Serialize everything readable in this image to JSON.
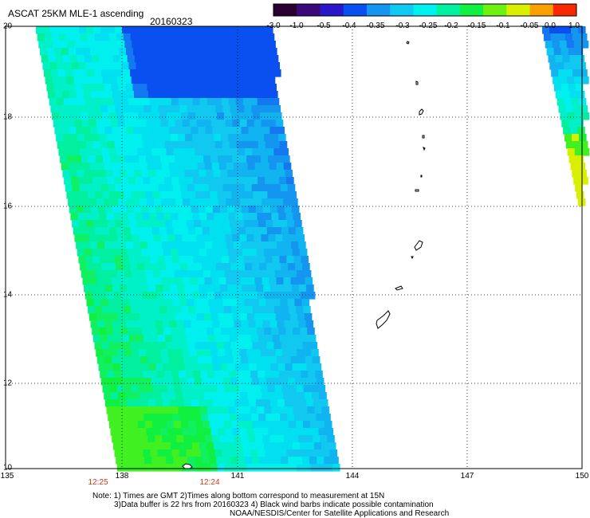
{
  "header": {
    "title": "ASCAT 25KM MLE-1 ascending",
    "date": "20160323"
  },
  "colorbar": {
    "ticks": [
      "-3.0",
      "-1.0",
      "-0.5",
      "-0.4",
      "-0.35",
      "-0.3",
      "-0.25",
      "-0.2",
      "-0.15",
      "-0.1",
      "-0.05",
      "0.0",
      "1.0"
    ],
    "colors": [
      "#2a0030",
      "#3a0a78",
      "#2a18c8",
      "#0a50f0",
      "#1496f0",
      "#10c8f0",
      "#00f0f0",
      "#00f0a0",
      "#10f040",
      "#70f010",
      "#d8f000",
      "#f8a000",
      "#f82800"
    ]
  },
  "map": {
    "lat_labels": [
      "20",
      "18",
      "16",
      "14",
      "12",
      "10"
    ],
    "lon_labels": [
      "135",
      "138",
      "141",
      "144",
      "147",
      "150"
    ],
    "time_labels": [
      "12:25",
      "12:24"
    ],
    "land_color": "#ffffff",
    "outline_color": "#000000",
    "grid_color": "#000000"
  },
  "footer": {
    "line1": "Note: 1) Times are GMT 2)Times along bottom correspond to measurement at 15N",
    "line2": "3)Data buffer is 22 hrs from 20160323 4) Black wind barbs indicate possible contamination",
    "line3": "NOAA/NESDIS/Center for Satellite Applications and Research"
  }
}
